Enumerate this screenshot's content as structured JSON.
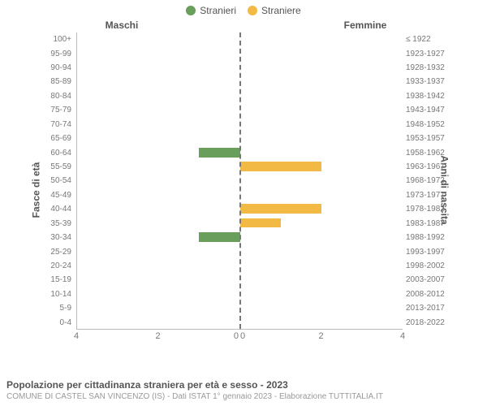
{
  "legend": {
    "male": {
      "label": "Stranieri",
      "color": "#6a9e5c"
    },
    "female": {
      "label": "Straniere",
      "color": "#f3b945"
    }
  },
  "headers": {
    "male": "Maschi",
    "female": "Femmine"
  },
  "axis_titles": {
    "left": "Fasce di età",
    "right": "Anni di nascita"
  },
  "chart": {
    "type": "population-pyramid",
    "xmax": 4,
    "x_ticks": [
      4,
      2,
      0,
      0,
      2,
      4
    ],
    "x_tick_positions_pct": [
      0,
      25,
      49,
      51,
      75,
      100
    ],
    "center_line_color": "#777777",
    "grid_at_center": true,
    "male_bar_color": "#6a9e5c",
    "female_bar_color": "#f3b945",
    "rows": [
      {
        "age": "100+",
        "birth": "≤ 1922",
        "male": 0,
        "female": 0
      },
      {
        "age": "95-99",
        "birth": "1923-1927",
        "male": 0,
        "female": 0
      },
      {
        "age": "90-94",
        "birth": "1928-1932",
        "male": 0,
        "female": 0
      },
      {
        "age": "85-89",
        "birth": "1933-1937",
        "male": 0,
        "female": 0
      },
      {
        "age": "80-84",
        "birth": "1938-1942",
        "male": 0,
        "female": 0
      },
      {
        "age": "75-79",
        "birth": "1943-1947",
        "male": 0,
        "female": 0
      },
      {
        "age": "70-74",
        "birth": "1948-1952",
        "male": 0,
        "female": 0
      },
      {
        "age": "65-69",
        "birth": "1953-1957",
        "male": 0,
        "female": 0
      },
      {
        "age": "60-64",
        "birth": "1958-1962",
        "male": 1,
        "female": 0
      },
      {
        "age": "55-59",
        "birth": "1963-1967",
        "male": 0,
        "female": 2
      },
      {
        "age": "50-54",
        "birth": "1968-1972",
        "male": 0,
        "female": 0
      },
      {
        "age": "45-49",
        "birth": "1973-1977",
        "male": 0,
        "female": 0
      },
      {
        "age": "40-44",
        "birth": "1978-1982",
        "male": 0,
        "female": 2
      },
      {
        "age": "35-39",
        "birth": "1983-1987",
        "male": 0,
        "female": 1
      },
      {
        "age": "30-34",
        "birth": "1988-1992",
        "male": 1,
        "female": 0
      },
      {
        "age": "25-29",
        "birth": "1993-1997",
        "male": 0,
        "female": 0
      },
      {
        "age": "20-24",
        "birth": "1998-2002",
        "male": 0,
        "female": 0
      },
      {
        "age": "15-19",
        "birth": "2003-2007",
        "male": 0,
        "female": 0
      },
      {
        "age": "10-14",
        "birth": "2008-2012",
        "male": 0,
        "female": 0
      },
      {
        "age": "5-9",
        "birth": "2013-2017",
        "male": 0,
        "female": 0
      },
      {
        "age": "0-4",
        "birth": "2018-2022",
        "male": 0,
        "female": 0
      }
    ]
  },
  "footer": {
    "title": "Popolazione per cittadinanza straniera per età e sesso - 2023",
    "sub": "COMUNE DI CASTEL SAN VINCENZO (IS) - Dati ISTAT 1° gennaio 2023 - Elaborazione TUTTITALIA.IT"
  }
}
